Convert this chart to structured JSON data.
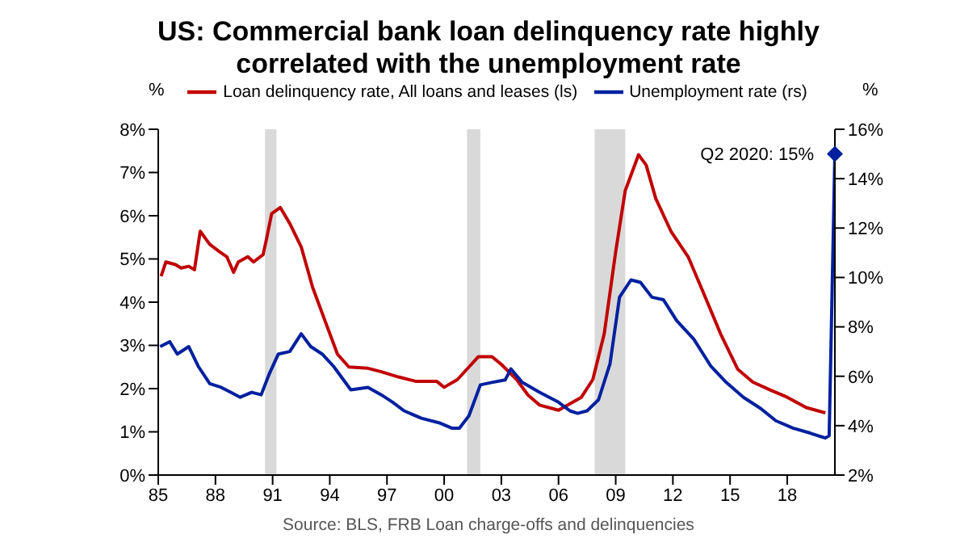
{
  "chart_data": {
    "type": "line",
    "title": "US: Commercial bank loan delinquency rate highly correlated with the unemployment rate",
    "ylabel": "%",
    "y2label": "%",
    "xlim": [
      1985,
      2020.5
    ],
    "xticks": [
      {
        "value": 1985,
        "label": "85"
      },
      {
        "value": 1988,
        "label": "88"
      },
      {
        "value": 1991,
        "label": "91"
      },
      {
        "value": 1994,
        "label": "94"
      },
      {
        "value": 1997,
        "label": "97"
      },
      {
        "value": 2000,
        "label": "00"
      },
      {
        "value": 2003,
        "label": "03"
      },
      {
        "value": 2006,
        "label": "06"
      },
      {
        "value": 2009,
        "label": "09"
      },
      {
        "value": 2012,
        "label": "12"
      },
      {
        "value": 2015,
        "label": "15"
      },
      {
        "value": 2018,
        "label": "18"
      }
    ],
    "ylim": [
      0,
      8
    ],
    "yticks": [
      {
        "value": 0,
        "label": "0%"
      },
      {
        "value": 1,
        "label": "1%"
      },
      {
        "value": 2,
        "label": "2%"
      },
      {
        "value": 3,
        "label": "3%"
      },
      {
        "value": 4,
        "label": "4%"
      },
      {
        "value": 5,
        "label": "5%"
      },
      {
        "value": 6,
        "label": "6%"
      },
      {
        "value": 7,
        "label": "7%"
      },
      {
        "value": 8,
        "label": "8%"
      }
    ],
    "y2lim": [
      2,
      16
    ],
    "y2ticks": [
      {
        "value": 2,
        "label": "2%"
      },
      {
        "value": 4,
        "label": "4%"
      },
      {
        "value": 6,
        "label": "6%"
      },
      {
        "value": 8,
        "label": "8%"
      },
      {
        "value": 10,
        "label": "10%"
      },
      {
        "value": 12,
        "label": "12%"
      },
      {
        "value": 14,
        "label": "14%"
      },
      {
        "value": 16,
        "label": "16%"
      }
    ],
    "legend": "top",
    "line_style": "solid",
    "marker": "none",
    "series": [
      {
        "name": "Loan delinquency rate, All loans and leases (ls)",
        "color": "#c00000",
        "x": [
          1985.15,
          1985.4,
          1985.9,
          1986.2,
          1986.6,
          1986.9,
          1987.2,
          1987.7,
          1988.2,
          1988.6,
          1988.95,
          1989.2,
          1989.7,
          1990.0,
          1990.5,
          1990.65,
          1990.95,
          1991.4,
          1991.9,
          1992.5,
          1993.1,
          1993.9,
          1994.4,
          1995.0,
          1996.0,
          1996.7,
          1997.6,
          1998.5,
          1999.6,
          2000.0,
          2000.7,
          2001.3,
          2001.8,
          2002.5,
          2003.0,
          2003.8,
          2004.4,
          2005.0,
          2006.0,
          2007.2,
          2007.8,
          2008.4,
          2009.0,
          2009.5,
          2010.2,
          2010.6,
          2011.1,
          2011.9,
          2012.8,
          2013.6,
          2014.5,
          2015.4,
          2016.2,
          2017.1,
          2018.0,
          2019.0,
          2020.0
        ],
        "values": [
          4.6,
          4.93,
          4.87,
          4.79,
          4.83,
          4.75,
          5.64,
          5.34,
          5.17,
          5.05,
          4.69,
          4.93,
          5.05,
          4.93,
          5.1,
          5.4,
          6.05,
          6.19,
          5.82,
          5.28,
          4.34,
          3.39,
          2.8,
          2.5,
          2.47,
          2.39,
          2.27,
          2.17,
          2.17,
          2.03,
          2.21,
          2.5,
          2.74,
          2.74,
          2.56,
          2.21,
          1.85,
          1.62,
          1.5,
          1.8,
          2.21,
          3.27,
          5.17,
          6.58,
          7.41,
          7.17,
          6.4,
          5.64,
          5.05,
          4.22,
          3.27,
          2.45,
          2.15,
          1.97,
          1.8,
          1.56,
          1.44
        ]
      },
      {
        "name": "Unemployment rate (rs)",
        "color": "#00209f",
        "axis": "y2",
        "x": [
          1985.1,
          1985.6,
          1986.0,
          1986.6,
          1987.1,
          1987.7,
          1988.3,
          1988.8,
          1989.3,
          1989.9,
          1990.4,
          1990.8,
          1991.3,
          1991.9,
          1992.5,
          1993.0,
          1993.6,
          1994.2,
          1995.1,
          1996.0,
          1996.7,
          1997.3,
          1997.9,
          1998.8,
          1999.8,
          2000.4,
          2000.8,
          2001.3,
          2001.9,
          2002.5,
          2003.2,
          2003.5,
          2004.1,
          2005.0,
          2006.0,
          2006.6,
          2007.0,
          2007.5,
          2008.1,
          2008.7,
          2009.2,
          2009.8,
          2010.3,
          2010.9,
          2011.5,
          2012.2,
          2013.1,
          2014.0,
          2014.8,
          2015.7,
          2016.6,
          2017.4,
          2018.3,
          2019.2,
          2020.0,
          2020.2,
          2020.5
        ],
        "values": [
          7.2,
          7.4,
          6.9,
          7.2,
          6.4,
          5.7,
          5.55,
          5.35,
          5.15,
          5.35,
          5.25,
          6.05,
          6.9,
          7.0,
          7.72,
          7.2,
          6.9,
          6.4,
          5.45,
          5.55,
          5.25,
          4.95,
          4.6,
          4.3,
          4.1,
          3.9,
          3.9,
          4.4,
          5.65,
          5.75,
          5.85,
          6.3,
          5.75,
          5.35,
          4.95,
          4.6,
          4.5,
          4.6,
          5.05,
          6.5,
          9.2,
          9.9,
          9.8,
          9.2,
          9.1,
          8.25,
          7.5,
          6.4,
          5.75,
          5.15,
          4.7,
          4.2,
          3.9,
          3.7,
          3.5,
          3.6,
          15.0
        ]
      }
    ],
    "bands": [
      {
        "axis": "x",
        "from": 1990.6,
        "to": 1991.2,
        "color": "#d9d9d9"
      },
      {
        "axis": "x",
        "from": 2001.2,
        "to": 2001.9,
        "color": "#d9d9d9"
      },
      {
        "axis": "x",
        "from": 2007.9,
        "to": 2009.5,
        "color": "#d9d9d9"
      }
    ],
    "annotations": [
      "Q2 2020: 15%",
      "Source: BLS, FRB Loan charge-offs and delinquencies"
    ]
  }
}
